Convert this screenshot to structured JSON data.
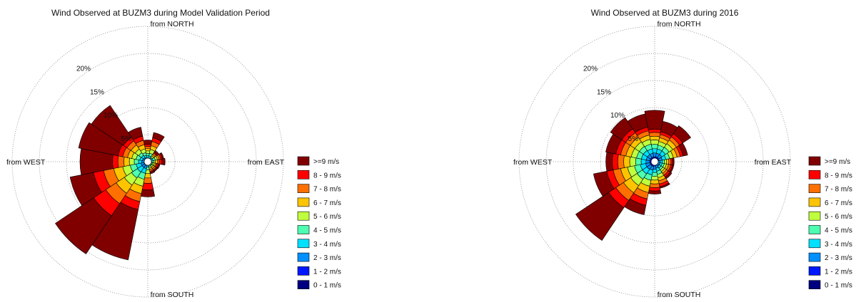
{
  "chart_data": [
    {
      "type": "windrose",
      "title": "Wind Observed at BUZM3 during Model Validation Period",
      "direction_labels": {
        "north": "from NORTH",
        "east": "from EAST",
        "south": "from SOUTH",
        "west": "from WEST"
      },
      "ring_labels": [
        "5%",
        "10%",
        "15%",
        "20%"
      ],
      "ring_values": [
        5,
        10,
        15,
        20
      ],
      "r_max": 25,
      "sector_width_deg": 22.5,
      "grid": true,
      "legend_position": "right",
      "speed_bins": [
        "0 - 1 m/s",
        "1 - 2 m/s",
        "2 - 3 m/s",
        "3 - 4 m/s",
        "4 - 5 m/s",
        "5 - 6 m/s",
        "6 - 7 m/s",
        "7 - 8 m/s",
        "8 - 9 m/s",
        ">=9 m/s"
      ],
      "sectors": [
        {
          "direction_deg": 0,
          "cumulative_percent": [
            0.2,
            0.4,
            0.7,
            1.1,
            1.5,
            2.0,
            2.4,
            2.8,
            3.2,
            4.0
          ]
        },
        {
          "direction_deg": 22.5,
          "cumulative_percent": [
            0.2,
            0.4,
            0.7,
            1.1,
            1.6,
            2.3,
            3.0,
            3.8,
            4.5,
            5.5
          ]
        },
        {
          "direction_deg": 45,
          "cumulative_percent": [
            0.1,
            0.3,
            0.5,
            0.8,
            1.0,
            1.3,
            1.6,
            1.9,
            2.1,
            2.5
          ]
        },
        {
          "direction_deg": 67.5,
          "cumulative_percent": [
            0.1,
            0.3,
            0.6,
            1.0,
            1.4,
            1.8,
            2.1,
            2.4,
            2.7,
            3.0
          ]
        },
        {
          "direction_deg": 90,
          "cumulative_percent": [
            0.1,
            0.3,
            0.5,
            0.8,
            1.1,
            1.4,
            1.8,
            2.1,
            2.6,
            3.2
          ]
        },
        {
          "direction_deg": 112.5,
          "cumulative_percent": [
            0.1,
            0.3,
            0.5,
            0.7,
            0.9,
            1.2,
            1.5,
            1.7,
            2.0,
            2.3
          ]
        },
        {
          "direction_deg": 135,
          "cumulative_percent": [
            0.1,
            0.3,
            0.5,
            0.7,
            0.9,
            1.2,
            1.5,
            1.8,
            2.0,
            2.2
          ]
        },
        {
          "direction_deg": 157.5,
          "cumulative_percent": [
            0.1,
            0.3,
            0.5,
            0.7,
            0.9,
            1.2,
            1.5,
            1.8,
            2.0,
            2.3
          ]
        },
        {
          "direction_deg": 180,
          "cumulative_percent": [
            0.2,
            0.4,
            0.7,
            1.0,
            1.5,
            2.2,
            3.0,
            4.0,
            5.2,
            6.5
          ]
        },
        {
          "direction_deg": 202.5,
          "cumulative_percent": [
            0.3,
            0.7,
            1.3,
            2.2,
            3.3,
            4.6,
            6.0,
            7.5,
            9.0,
            18.5
          ]
        },
        {
          "direction_deg": 225,
          "cumulative_percent": [
            0.3,
            0.7,
            1.3,
            2.3,
            3.6,
            5.2,
            7.0,
            9.3,
            12.0,
            20.5
          ]
        },
        {
          "direction_deg": 247.5,
          "cumulative_percent": [
            0.3,
            0.7,
            1.3,
            2.2,
            3.3,
            4.7,
            6.4,
            8.3,
            10.2,
            14.6
          ]
        },
        {
          "direction_deg": 270,
          "cumulative_percent": [
            0.3,
            0.6,
            1.1,
            1.7,
            2.5,
            3.4,
            4.4,
            5.5,
            6.5,
            12.5
          ]
        },
        {
          "direction_deg": 292.5,
          "cumulative_percent": [
            0.3,
            0.6,
            1.0,
            1.5,
            2.2,
            3.0,
            3.8,
            4.7,
            5.6,
            13.0
          ]
        },
        {
          "direction_deg": 315,
          "cumulative_percent": [
            0.2,
            0.5,
            0.9,
            1.4,
            2.0,
            2.8,
            3.7,
            4.6,
            5.4,
            12.5
          ]
        },
        {
          "direction_deg": 337.5,
          "cumulative_percent": [
            0.2,
            0.5,
            0.8,
            1.2,
            1.7,
            2.4,
            3.2,
            4.0,
            4.8,
            6.5
          ]
        }
      ]
    },
    {
      "type": "windrose",
      "title": "Wind Observed at BUZM3 during 2016",
      "direction_labels": {
        "north": "from NORTH",
        "east": "from EAST",
        "south": "from SOUTH",
        "west": "from WEST"
      },
      "ring_labels": [
        "5%",
        "10%",
        "15%",
        "20%"
      ],
      "ring_values": [
        5,
        10,
        15,
        20
      ],
      "r_max": 25,
      "sector_width_deg": 22.5,
      "grid": true,
      "legend_position": "right",
      "speed_bins": [
        "0 - 1 m/s",
        "1 - 2 m/s",
        "2 - 3 m/s",
        "3 - 4 m/s",
        "4 - 5 m/s",
        "5 - 6 m/s",
        "6 - 7 m/s",
        "7 - 8 m/s",
        "8 - 9 m/s",
        ">=9 m/s"
      ],
      "sectors": [
        {
          "direction_deg": 0,
          "cumulative_percent": [
            0.4,
            0.9,
            1.6,
            2.4,
            3.2,
            4.0,
            4.7,
            5.4,
            6.0,
            9.5
          ]
        },
        {
          "direction_deg": 22.5,
          "cumulative_percent": [
            0.4,
            0.9,
            1.6,
            2.4,
            3.1,
            3.8,
            4.5,
            5.1,
            5.6,
            7.6
          ]
        },
        {
          "direction_deg": 45,
          "cumulative_percent": [
            0.4,
            0.9,
            1.6,
            2.4,
            3.2,
            4.0,
            4.8,
            5.5,
            6.2,
            8.0
          ]
        },
        {
          "direction_deg": 67.5,
          "cumulative_percent": [
            0.3,
            0.8,
            1.4,
            2.1,
            2.8,
            3.5,
            4.2,
            4.8,
            5.3,
            6.2
          ]
        },
        {
          "direction_deg": 90,
          "cumulative_percent": [
            0.3,
            0.6,
            1.0,
            1.4,
            1.8,
            2.2,
            2.6,
            3.0,
            3.3,
            3.6
          ]
        },
        {
          "direction_deg": 112.5,
          "cumulative_percent": [
            0.3,
            0.6,
            1.0,
            1.4,
            1.8,
            2.2,
            2.6,
            3.0,
            3.3,
            3.6
          ]
        },
        {
          "direction_deg": 135,
          "cumulative_percent": [
            0.3,
            0.6,
            1.0,
            1.4,
            1.8,
            2.2,
            2.6,
            3.0,
            3.4,
            3.8
          ]
        },
        {
          "direction_deg": 157.5,
          "cumulative_percent": [
            0.3,
            0.7,
            1.2,
            1.8,
            2.4,
            3.0,
            3.6,
            4.2,
            4.7,
            5.0
          ]
        },
        {
          "direction_deg": 180,
          "cumulative_percent": [
            0.4,
            0.8,
            1.4,
            2.0,
            2.7,
            3.4,
            4.1,
            4.8,
            5.4,
            6.0
          ]
        },
        {
          "direction_deg": 202.5,
          "cumulative_percent": [
            0.4,
            0.9,
            1.6,
            2.5,
            3.5,
            4.6,
            5.8,
            7.0,
            8.2,
            10.0
          ]
        },
        {
          "direction_deg": 225,
          "cumulative_percent": [
            0.4,
            0.9,
            1.7,
            2.7,
            3.9,
            5.3,
            6.9,
            8.6,
            10.2,
            17.5
          ]
        },
        {
          "direction_deg": 247.5,
          "cumulative_percent": [
            0.4,
            0.9,
            1.7,
            2.7,
            3.8,
            5.1,
            6.4,
            7.8,
            9.0,
            11.5
          ]
        },
        {
          "direction_deg": 270,
          "cumulative_percent": [
            0.4,
            0.9,
            1.6,
            2.5,
            3.5,
            4.6,
            5.7,
            6.8,
            7.8,
            9.0
          ]
        },
        {
          "direction_deg": 292.5,
          "cumulative_percent": [
            0.4,
            0.9,
            1.6,
            2.5,
            3.4,
            4.4,
            5.4,
            6.4,
            7.3,
            9.2
          ]
        },
        {
          "direction_deg": 315,
          "cumulative_percent": [
            0.4,
            0.9,
            1.6,
            2.5,
            3.4,
            4.4,
            5.4,
            6.4,
            7.3,
            9.8
          ]
        },
        {
          "direction_deg": 337.5,
          "cumulative_percent": [
            0.4,
            0.9,
            1.6,
            2.4,
            3.3,
            4.2,
            5.0,
            5.8,
            6.5,
            9.0
          ]
        }
      ]
    }
  ],
  "legend": {
    "items": [
      {
        "label": ">=9 m/s",
        "color": "#800000"
      },
      {
        "label": "8 - 9 m/s",
        "color": "#ff0000"
      },
      {
        "label": "7 - 8 m/s",
        "color": "#ff7000"
      },
      {
        "label": "6 - 7 m/s",
        "color": "#ffc400"
      },
      {
        "label": "5 - 6 m/s",
        "color": "#c0ff3e"
      },
      {
        "label": "4 - 5 m/s",
        "color": "#4dffb0"
      },
      {
        "label": "3 - 4 m/s",
        "color": "#00e0ff"
      },
      {
        "label": "2 - 3 m/s",
        "color": "#0090ff"
      },
      {
        "label": "1 - 2 m/s",
        "color": "#0018ff"
      },
      {
        "label": "0 - 1 m/s",
        "color": "#000080"
      }
    ]
  },
  "bin_colors": [
    "#000080",
    "#0018ff",
    "#0090ff",
    "#00e0ff",
    "#4dffb0",
    "#c0ff3e",
    "#ffc400",
    "#ff7000",
    "#ff0000",
    "#800000"
  ],
  "grid_color": "#888888",
  "outline_color": "#000000"
}
